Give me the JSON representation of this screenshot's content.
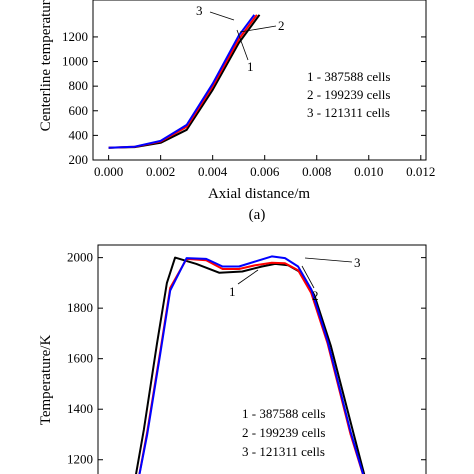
{
  "chart_data": [
    {
      "type": "line",
      "panel_label": "(a)",
      "xlabel": "Axial distance/m",
      "ylabel": "Centerline temperature/K",
      "xlim": [
        -0.0006,
        0.0122
      ],
      "ylim": [
        200,
        1500
      ],
      "xticks": [
        "0.000",
        "0.002",
        "0.004",
        "0.006",
        "0.008",
        "0.010",
        "0.012"
      ],
      "xtick_values": [
        0.0,
        0.002,
        0.004,
        0.006,
        0.008,
        0.01,
        0.012
      ],
      "yticks": [
        "200",
        "400",
        "600",
        "800",
        "1000",
        "1200"
      ],
      "ytick_values": [
        200,
        400,
        600,
        800,
        1000,
        1200
      ],
      "legend": [
        "1 - 387588 cells",
        "2 - 199239 cells",
        "3 - 121311 cells"
      ],
      "curve_labels": [
        "1",
        "2",
        "3"
      ],
      "series": [
        {
          "name": "1 - 387588 cells",
          "color": "#000000",
          "x": [
            0.0,
            0.001,
            0.002,
            0.003,
            0.004,
            0.005,
            0.0058
          ],
          "y": [
            300,
            305,
            340,
            445,
            770,
            1150,
            1380
          ]
        },
        {
          "name": "2 - 199239 cells",
          "color": "#ff0000",
          "x": [
            0.0,
            0.001,
            0.002,
            0.003,
            0.004,
            0.005,
            0.0057
          ],
          "y": [
            300,
            307,
            350,
            470,
            800,
            1180,
            1380
          ]
        },
        {
          "name": "3 - 121311 cells",
          "color": "#0000ff",
          "x": [
            0.0,
            0.001,
            0.002,
            0.003,
            0.004,
            0.005,
            0.0056
          ],
          "y": [
            300,
            308,
            355,
            485,
            820,
            1210,
            1380
          ]
        }
      ]
    },
    {
      "type": "line",
      "ylabel": "Temperature/K",
      "ylim": [
        1100,
        2050
      ],
      "yticks": [
        "1200",
        "1400",
        "1600",
        "1800",
        "2000"
      ],
      "ytick_values": [
        1200,
        1400,
        1600,
        1800,
        2000
      ],
      "legend": [
        "1 - 387588 cells",
        "2 - 199239 cells",
        "3 - 121311 cells"
      ],
      "curve_labels": [
        "1",
        "2",
        "3"
      ],
      "series": [
        {
          "name": "1 - 387588 cells",
          "color": "#000000",
          "x": [
            0.11,
            0.14,
            0.18,
            0.21,
            0.235,
            0.3,
            0.37,
            0.44,
            0.5,
            0.54,
            0.58,
            0.62,
            0.66,
            0.71,
            0.78,
            0.82
          ],
          "y": [
            1100,
            1320,
            1660,
            1900,
            2000,
            1975,
            1940,
            1945,
            1965,
            1975,
            1970,
            1940,
            1850,
            1650,
            1300,
            1100
          ]
        },
        {
          "name": "2 - 199239 cells",
          "color": "#ff0000",
          "x": [
            0.12,
            0.15,
            0.19,
            0.22,
            0.27,
            0.33,
            0.38,
            0.43,
            0.48,
            0.53,
            0.57,
            0.61,
            0.65,
            0.7,
            0.77,
            0.82
          ],
          "y": [
            1100,
            1310,
            1630,
            1880,
            1995,
            1990,
            1955,
            1955,
            1970,
            1980,
            1978,
            1950,
            1860,
            1660,
            1300,
            1090
          ]
        },
        {
          "name": "3 - 121311 cells",
          "color": "#0000ff",
          "x": [
            0.12,
            0.15,
            0.19,
            0.22,
            0.27,
            0.33,
            0.38,
            0.43,
            0.48,
            0.53,
            0.57,
            0.61,
            0.65,
            0.7,
            0.77,
            0.82
          ],
          "y": [
            1100,
            1300,
            1620,
            1870,
            1998,
            1995,
            1965,
            1965,
            1985,
            2005,
            1998,
            1965,
            1875,
            1670,
            1310,
            1090
          ]
        }
      ]
    }
  ]
}
